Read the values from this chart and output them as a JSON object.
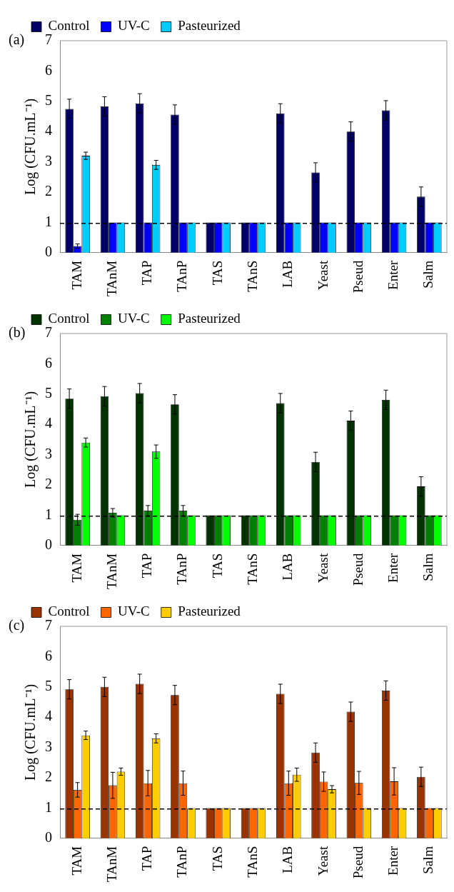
{
  "chart_data": [
    {
      "type": "bar",
      "annotations": [
        "(a)"
      ],
      "ylabel": "Log (CFU.mL⁻¹)",
      "categories": [
        "TAM",
        "TAnM",
        "TAP",
        "TAnP",
        "TAS",
        "TAnS",
        "LAB",
        "Yeast",
        "Pseud",
        "Enter",
        "Salm"
      ],
      "series": [
        {
          "name": "Control",
          "color": "#000066",
          "values": [
            4.75,
            4.83,
            4.93,
            4.56,
            1,
            1,
            4.6,
            2.65,
            4.0,
            4.7,
            1.85
          ],
          "errors": [
            0.32,
            0.32,
            0.32,
            0.32,
            null,
            null,
            0.32,
            0.32,
            0.32,
            0.32,
            0.32
          ]
        },
        {
          "name": "UV-C",
          "color": "#0000ff",
          "values": [
            0.22,
            1,
            1,
            1,
            1,
            1,
            1,
            1,
            1,
            1,
            1
          ],
          "errors": [
            0.07,
            null,
            null,
            null,
            null,
            null,
            null,
            null,
            null,
            null,
            null
          ]
        },
        {
          "name": "Pasteurized",
          "color": "#00ccff",
          "values": [
            3.2,
            1,
            2.9,
            1,
            1,
            1,
            1,
            1,
            1,
            1,
            1
          ],
          "errors": [
            0.12,
            null,
            0.15,
            null,
            null,
            null,
            null,
            null,
            null,
            null,
            null
          ]
        }
      ],
      "ylim": [
        0,
        7
      ],
      "yticks": [
        0,
        1,
        2,
        3,
        4,
        5,
        6,
        7
      ],
      "ref_lines": [
        {
          "axis": "y",
          "value": 0.97,
          "line_style": "dashed",
          "color": "#000000"
        }
      ],
      "legend": "top left",
      "grid": false
    },
    {
      "type": "bar",
      "annotations": [
        "(b)"
      ],
      "ylabel": "Log (CFU.mL⁻¹)",
      "categories": [
        "TAM",
        "TAnM",
        "TAP",
        "TAnP",
        "TAS",
        "TAnS",
        "LAB",
        "Yeast",
        "Pseud",
        "Enter",
        "Salm"
      ],
      "series": [
        {
          "name": "Control",
          "color": "#003300",
          "values": [
            4.85,
            4.93,
            5.03,
            4.66,
            1,
            1,
            4.7,
            2.76,
            4.12,
            4.81,
            1.95
          ],
          "errors": [
            0.32,
            0.32,
            0.32,
            0.32,
            null,
            null,
            0.32,
            0.32,
            0.32,
            0.32,
            0.32
          ]
        },
        {
          "name": "UV-C",
          "color": "#008000",
          "values": [
            0.85,
            1.08,
            1.15,
            1.15,
            1,
            1,
            1,
            1,
            1,
            1,
            1
          ],
          "errors": [
            0.18,
            0.14,
            0.17,
            0.17,
            null,
            null,
            null,
            null,
            null,
            null,
            null
          ]
        },
        {
          "name": "Pasteurized",
          "color": "#00ff00",
          "values": [
            3.4,
            1,
            3.1,
            1,
            1,
            1,
            1,
            1,
            1,
            1,
            1
          ],
          "errors": [
            0.15,
            null,
            0.22,
            null,
            null,
            null,
            null,
            null,
            null,
            null,
            null
          ]
        }
      ],
      "ylim": [
        0,
        7
      ],
      "yticks": [
        0,
        1,
        2,
        3,
        4,
        5,
        6,
        7
      ],
      "ref_lines": [
        {
          "axis": "y",
          "value": 0.97,
          "line_style": "dashed",
          "color": "#000000"
        }
      ],
      "legend": "top left",
      "grid": false
    },
    {
      "type": "bar",
      "annotations": [
        "(c)"
      ],
      "ylabel": "Log (CFU.mL⁻¹)",
      "categories": [
        "TAM",
        "TAnM",
        "TAP",
        "TAnP",
        "TAS",
        "TAnS",
        "LAB",
        "Yeast",
        "Pseud",
        "Enter",
        "Salm"
      ],
      "series": [
        {
          "name": "Control",
          "color": "#993300",
          "values": [
            4.92,
            5.0,
            5.1,
            4.73,
            1,
            1,
            4.77,
            2.83,
            4.18,
            4.88,
            2.03
          ],
          "errors": [
            0.32,
            0.32,
            0.32,
            0.32,
            null,
            null,
            0.32,
            0.32,
            0.32,
            0.32,
            0.32
          ]
        },
        {
          "name": "UV-C",
          "color": "#ff6600",
          "values": [
            1.6,
            1.75,
            1.82,
            1.82,
            1,
            1,
            1.82,
            1.87,
            1.83,
            1.88,
            1
          ],
          "errors": [
            0.24,
            0.43,
            0.42,
            0.4,
            null,
            null,
            0.4,
            0.32,
            0.38,
            0.45,
            null
          ]
        },
        {
          "name": "Pasteurized",
          "color": "#ffcc00",
          "values": [
            3.4,
            2.2,
            3.3,
            1,
            1,
            1,
            2.1,
            1.62,
            1,
            1,
            1
          ],
          "errors": [
            0.14,
            0.12,
            0.15,
            null,
            null,
            null,
            0.22,
            0.12,
            null,
            null,
            null
          ]
        }
      ],
      "ylim": [
        0,
        7
      ],
      "yticks": [
        0,
        1,
        2,
        3,
        4,
        5,
        6,
        7
      ],
      "ref_lines": [
        {
          "axis": "y",
          "value": 0.97,
          "line_style": "dashed",
          "color": "#000000"
        }
      ],
      "legend": "top left",
      "grid": false
    }
  ]
}
